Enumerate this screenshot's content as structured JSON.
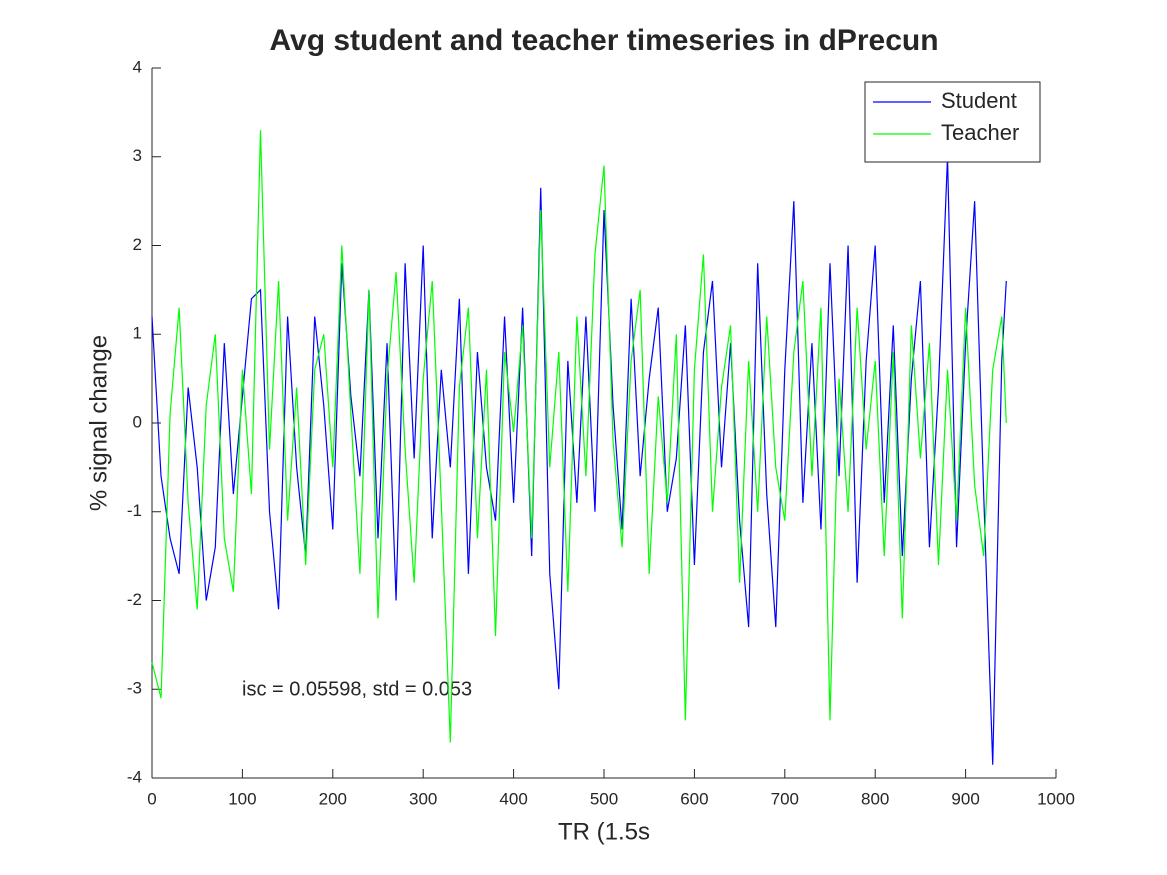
{
  "chart_data": {
    "type": "line",
    "title": "Avg student and teacher timeseries in dPrecun",
    "xlabel": "TR (1.5s",
    "ylabel": "% signal change",
    "annotation": "isc = 0.05598, std = 0.053",
    "legend": "northeast",
    "xlim": [
      0,
      1000
    ],
    "xticks": [
      0,
      100,
      200,
      300,
      400,
      500,
      600,
      700,
      800,
      900,
      1000
    ],
    "ylim": [
      -4,
      4
    ],
    "yticks": [
      -4,
      -3,
      -2,
      -1,
      0,
      1,
      2,
      3,
      4
    ],
    "x": [
      0,
      10,
      20,
      30,
      40,
      50,
      60,
      70,
      80,
      90,
      100,
      110,
      120,
      130,
      140,
      150,
      160,
      170,
      180,
      190,
      200,
      210,
      220,
      230,
      240,
      250,
      260,
      270,
      280,
      290,
      300,
      310,
      320,
      330,
      340,
      350,
      360,
      370,
      380,
      390,
      400,
      410,
      420,
      430,
      440,
      450,
      460,
      470,
      480,
      490,
      500,
      510,
      520,
      530,
      540,
      550,
      560,
      570,
      580,
      590,
      600,
      610,
      620,
      630,
      640,
      650,
      660,
      670,
      680,
      690,
      700,
      710,
      720,
      730,
      740,
      750,
      760,
      770,
      780,
      790,
      800,
      810,
      820,
      830,
      840,
      850,
      860,
      870,
      880,
      890,
      900,
      910,
      920,
      930,
      940,
      945
    ],
    "series": [
      {
        "name": "Student",
        "color": "#0000ff",
        "values": [
          1.2,
          -0.6,
          -1.3,
          -1.7,
          0.4,
          -0.5,
          -2.0,
          -1.4,
          0.9,
          -0.8,
          0.3,
          1.4,
          1.5,
          -1.0,
          -2.1,
          1.2,
          -0.5,
          -1.5,
          1.2,
          0.2,
          -1.2,
          1.8,
          0.3,
          -0.6,
          1.5,
          -1.3,
          0.9,
          -2.0,
          1.8,
          -0.4,
          2.0,
          -1.3,
          0.6,
          -0.5,
          1.4,
          -1.7,
          0.8,
          -0.5,
          -1.1,
          1.2,
          -0.9,
          1.3,
          -1.5,
          2.65,
          -1.7,
          -3.0,
          0.7,
          -0.9,
          1.2,
          -1.0,
          2.4,
          0.2,
          -1.2,
          1.4,
          -0.6,
          0.5,
          1.3,
          -1.0,
          -0.4,
          1.1,
          -1.6,
          0.8,
          1.6,
          -0.5,
          0.9,
          -1.1,
          -2.3,
          1.8,
          -0.8,
          -2.3,
          0.6,
          2.5,
          -0.9,
          0.9,
          -1.2,
          1.8,
          -0.6,
          2.0,
          -1.8,
          0.7,
          2.0,
          -0.9,
          1.1,
          -1.5,
          0.5,
          1.6,
          -1.4,
          0.4,
          3.0,
          -1.4,
          0.9,
          2.5,
          -0.8,
          -3.85,
          0.7,
          1.6
        ]
      },
      {
        "name": "Teacher",
        "color": "#00ff00",
        "values": [
          -2.7,
          -3.1,
          0.1,
          1.3,
          -0.9,
          -2.1,
          0.2,
          1.0,
          -1.3,
          -1.9,
          0.6,
          -0.8,
          3.3,
          -0.3,
          1.6,
          -1.1,
          0.4,
          -1.6,
          0.6,
          1.0,
          -0.5,
          2.0,
          0.1,
          -1.7,
          1.5,
          -2.2,
          0.5,
          1.7,
          -0.3,
          -1.8,
          0.5,
          1.6,
          -0.9,
          -3.6,
          0.4,
          1.3,
          -1.3,
          0.6,
          -2.4,
          0.8,
          -0.1,
          1.1,
          -1.3,
          2.4,
          -0.5,
          0.8,
          -1.9,
          1.2,
          -0.6,
          1.9,
          2.9,
          -0.2,
          -1.4,
          0.7,
          1.5,
          -1.7,
          0.3,
          -0.9,
          1.0,
          -3.35,
          0.6,
          1.9,
          -1.0,
          0.4,
          1.1,
          -1.8,
          0.7,
          -1.0,
          1.2,
          -0.5,
          -1.1,
          0.8,
          1.6,
          -0.6,
          1.3,
          -3.35,
          0.5,
          -1.0,
          1.3,
          -0.3,
          0.7,
          -1.5,
          0.8,
          -2.2,
          1.1,
          -0.4,
          0.9,
          -1.6,
          0.6,
          -1.1,
          1.3,
          -0.7,
          -1.5,
          0.6,
          1.2,
          0.0
        ]
      }
    ]
  }
}
